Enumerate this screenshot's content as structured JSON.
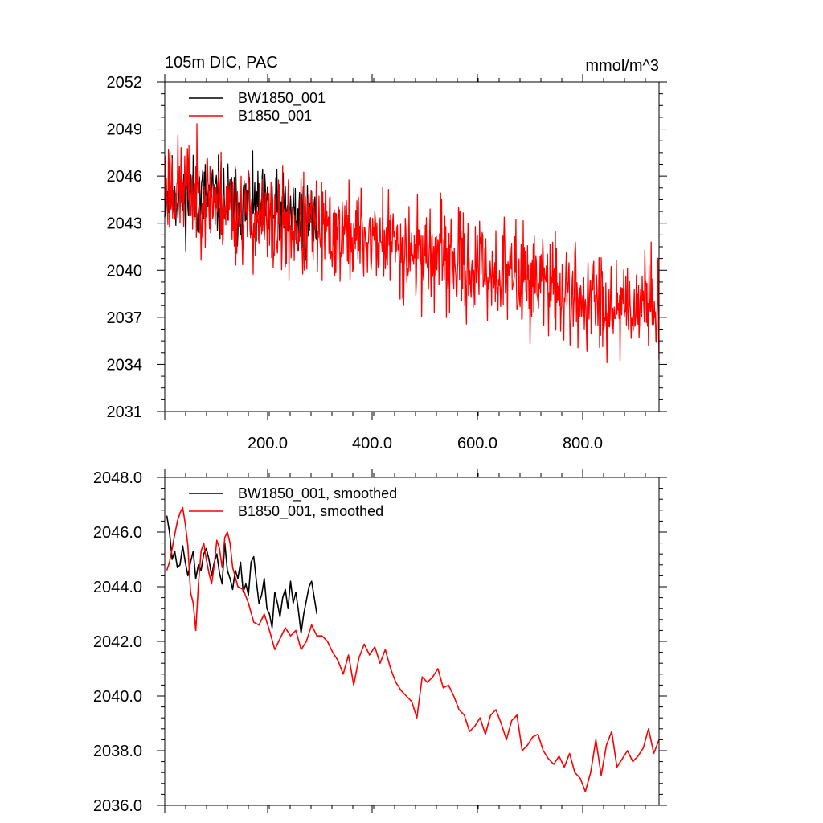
{
  "chart_data": [
    {
      "type": "line",
      "title_left": "105m DIC, PAC",
      "title_right": "mmol/m^3",
      "xlabel": "",
      "ylabel": "",
      "xlim": [
        1,
        940
      ],
      "ylim": [
        2031,
        2052
      ],
      "x_ticks": [
        200,
        400,
        600,
        800
      ],
      "x_tick_labels": [
        "200.0",
        "400.0",
        "600.0",
        "800.0"
      ],
      "y_ticks": [
        2031,
        2034,
        2037,
        2040,
        2043,
        2046,
        2049,
        2052
      ],
      "y_tick_labels": [
        "2031",
        "2034",
        "2037",
        "2040",
        "2043",
        "2046",
        "2049",
        "2052"
      ],
      "legend": [
        "BW1850_001",
        "B1850_001"
      ],
      "series": [
        {
          "name": "BW1850_001",
          "color": "#000000",
          "x_start": 1,
          "x_end": 290,
          "trend": [
            [
              1,
              2045.0
            ],
            [
              100,
              2044.5
            ],
            [
              200,
              2043.6
            ],
            [
              290,
              2043.2
            ]
          ],
          "noise_amplitude": 1.3,
          "seed": 11
        },
        {
          "name": "B1850_001",
          "color": "#ff0000",
          "x_start": 1,
          "x_end": 940,
          "trend": [
            [
              1,
              2045.5
            ],
            [
              100,
              2044.5
            ],
            [
              200,
              2042.8
            ],
            [
              300,
              2042.5
            ],
            [
              400,
              2042.0
            ],
            [
              500,
              2041.0
            ],
            [
              600,
              2040.0
            ],
            [
              700,
              2039.5
            ],
            [
              800,
              2038.0
            ],
            [
              940,
              2038.0
            ]
          ],
          "noise_amplitude": 1.6,
          "seed": 23
        }
      ]
    },
    {
      "type": "line",
      "xlabel": "",
      "ylabel": "",
      "xlim": [
        1,
        940
      ],
      "ylim": [
        2036,
        2048
      ],
      "y_ticks": [
        2036,
        2038,
        2040,
        2042,
        2044,
        2046,
        2048
      ],
      "y_tick_labels": [
        "2036.0",
        "2038.0",
        "2040.0",
        "2042.0",
        "2044.0",
        "2046.0",
        "2048.0"
      ],
      "legend": [
        "BW1850_001, smoothed",
        "B1850_001, smoothed"
      ],
      "series": [
        {
          "name": "BW1850_001, smoothed",
          "color": "#000000",
          "x": [
            5,
            10,
            15,
            20,
            25,
            30,
            35,
            40,
            45,
            50,
            55,
            60,
            65,
            70,
            75,
            80,
            85,
            90,
            95,
            100,
            105,
            110,
            115,
            120,
            125,
            130,
            135,
            140,
            145,
            150,
            155,
            160,
            165,
            170,
            175,
            180,
            185,
            190,
            195,
            200,
            205,
            210,
            215,
            220,
            225,
            230,
            235,
            240,
            245,
            250,
            255,
            260,
            265,
            270,
            275,
            280,
            285,
            290
          ],
          "values": [
            2046.6,
            2046.0,
            2045.0,
            2045.3,
            2044.7,
            2044.8,
            2045.5,
            2044.9,
            2044.4,
            2044.9,
            2045.3,
            2044.3,
            2044.8,
            2044.6,
            2045.2,
            2045.4,
            2045.0,
            2044.4,
            2044.9,
            2045.2,
            2044.5,
            2044.1,
            2045.6,
            2044.6,
            2044.3,
            2043.9,
            2044.6,
            2044.3,
            2044.9,
            2043.8,
            2044.1,
            2043.7,
            2044.9,
            2045.1,
            2044.2,
            2043.4,
            2043.7,
            2044.3,
            2043.2,
            2043.0,
            2042.5,
            2043.8,
            2043.4,
            2042.9,
            2043.6,
            2043.9,
            2043.2,
            2044.2,
            2043.4,
            2043.8,
            2043.1,
            2042.3,
            2043.0,
            2043.5,
            2044.0,
            2044.2,
            2043.6,
            2043.0
          ]
        },
        {
          "name": "B1850_001, smoothed",
          "color": "#ff0000",
          "x": [
            5,
            10,
            15,
            20,
            25,
            30,
            35,
            40,
            45,
            50,
            55,
            60,
            65,
            70,
            75,
            80,
            85,
            90,
            95,
            100,
            105,
            110,
            115,
            120,
            125,
            130,
            140,
            150,
            160,
            170,
            180,
            190,
            200,
            210,
            220,
            230,
            240,
            250,
            260,
            270,
            280,
            290,
            300,
            310,
            320,
            330,
            340,
            350,
            360,
            370,
            380,
            390,
            400,
            410,
            420,
            430,
            440,
            450,
            460,
            470,
            480,
            490,
            500,
            510,
            520,
            530,
            540,
            550,
            560,
            570,
            580,
            590,
            600,
            610,
            620,
            630,
            640,
            650,
            660,
            670,
            680,
            690,
            700,
            710,
            720,
            730,
            740,
            750,
            760,
            770,
            780,
            790,
            800,
            810,
            820,
            830,
            840,
            850,
            860,
            870,
            880,
            890,
            900,
            910,
            920,
            930,
            940
          ],
          "values": [
            2044.6,
            2044.9,
            2045.4,
            2045.9,
            2046.4,
            2046.7,
            2046.9,
            2046.3,
            2045.5,
            2043.8,
            2043.4,
            2042.4,
            2044.1,
            2045.3,
            2045.6,
            2045.0,
            2044.5,
            2044.1,
            2044.8,
            2045.7,
            2045.4,
            2044.7,
            2045.8,
            2046.0,
            2045.6,
            2044.7,
            2044.0,
            2043.9,
            2043.4,
            2042.7,
            2042.6,
            2043.0,
            2042.4,
            2041.7,
            2042.1,
            2042.5,
            2042.2,
            2042.4,
            2041.7,
            2042.0,
            2042.6,
            2042.2,
            2042.2,
            2042.0,
            2041.6,
            2041.3,
            2040.8,
            2041.5,
            2040.4,
            2041.4,
            2041.9,
            2041.5,
            2041.8,
            2041.2,
            2041.7,
            2041.0,
            2040.5,
            2040.2,
            2040.0,
            2039.8,
            2039.2,
            2040.7,
            2040.5,
            2040.7,
            2041.0,
            2040.3,
            2040.4,
            2040.0,
            2039.5,
            2039.3,
            2038.7,
            2038.9,
            2039.2,
            2038.6,
            2039.3,
            2039.5,
            2039.0,
            2038.4,
            2039.1,
            2039.3,
            2038.0,
            2038.2,
            2038.5,
            2038.6,
            2038.0,
            2037.7,
            2037.5,
            2037.8,
            2037.4,
            2037.9,
            2037.2,
            2037.0,
            2036.5,
            2037.2,
            2038.4,
            2037.1,
            2038.2,
            2038.7,
            2037.4,
            2037.7,
            2038.0,
            2037.6,
            2037.8,
            2038.1,
            2038.8,
            2037.9,
            2038.4
          ]
        }
      ]
    }
  ]
}
